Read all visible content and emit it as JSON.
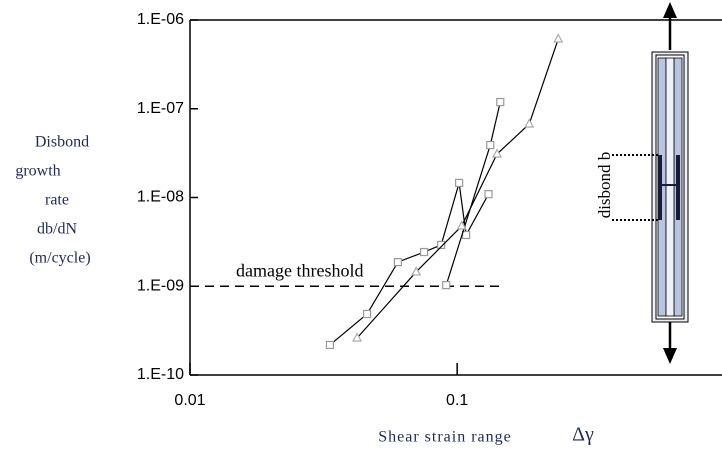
{
  "chart_data": {
    "type": "line",
    "x_label": "Shear strain range",
    "x_symbol": "Δγ",
    "y_label": [
      "Disbond",
      "growth",
      "rate",
      "db/dN",
      "(m/cycle)"
    ],
    "log_x": true,
    "log_y": true,
    "xlim": [
      0.01,
      0.98
    ],
    "xticks": [
      0.01,
      0.1
    ],
    "ylim": [
      1e-10,
      1e-06
    ],
    "yticks": [
      {
        "value": 1e-10,
        "label": "1.E-10"
      },
      {
        "value": 1e-09,
        "label": "1.E-09"
      },
      {
        "value": 1e-08,
        "label": "1.E-08"
      },
      {
        "value": 1e-07,
        "label": "1.E-07"
      },
      {
        "value": 1e-06,
        "label": "1.E-06"
      }
    ],
    "series": [
      {
        "marker": "square",
        "color": "#999999",
        "x": [
          0.0334,
          0.046,
          0.06,
          0.0752,
          0.0871,
          0.1017,
          0.108,
          0.131
        ],
        "values": [
          2.18e-10,
          4.87e-10,
          1.87e-09,
          2.43e-09,
          2.92e-09,
          1.46e-08,
          3.78e-09,
          1.09e-08
        ]
      },
      {
        "marker": "square",
        "color": "#999999",
        "x": [
          0.091,
          0.133,
          0.145
        ],
        "values": [
          1.03e-09,
          3.9e-08,
          1.19e-07
        ]
      },
      {
        "marker": "triangle",
        "color": "#aaaaaa",
        "x": [
          0.0422,
          0.0702,
          0.104,
          0.141,
          0.186,
          0.239
        ],
        "values": [
          2.61e-10,
          1.45e-09,
          4.77e-09,
          3.09e-08,
          6.73e-08,
          6.11e-07
        ]
      }
    ],
    "threshold": {
      "label": "damage threshold",
      "value": 1e-09,
      "x_end": 0.151
    },
    "specimen_label": "disbond b"
  }
}
